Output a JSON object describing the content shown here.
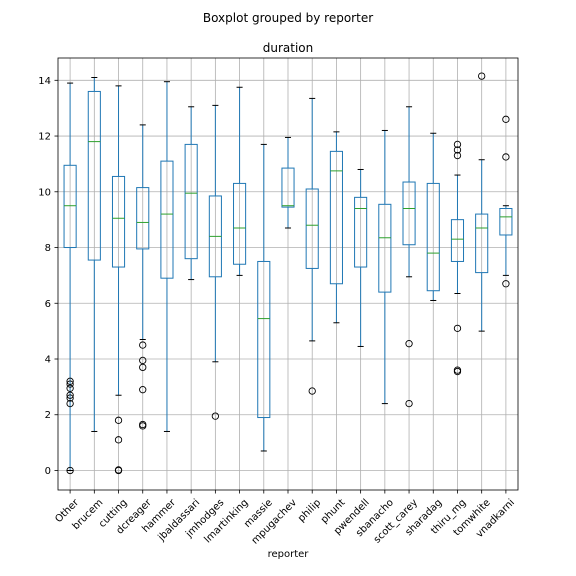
{
  "chart_data": {
    "type": "boxplot",
    "suptitle": "Boxplot grouped by reporter",
    "title": "duration",
    "xlabel": "reporter",
    "ylabel": "",
    "ylim": [
      -0.7,
      14.8
    ],
    "yticks": [
      0,
      2,
      4,
      6,
      8,
      10,
      12,
      14
    ],
    "grid": true,
    "colors": {
      "box": "#1f77b4",
      "median": "#2ca02c",
      "flier": "#000000",
      "grid": "#b0b0b0"
    },
    "categories": [
      "Other",
      "brucem",
      "cutting",
      "dcreager",
      "hammer",
      "jbaldassari",
      "jmhodges",
      "lmartinking",
      "massie",
      "mpugachev",
      "philip",
      "phunt",
      "pwendell",
      "sbanacho",
      "scott_carey",
      "sharadag",
      "thiru_mg",
      "tomwhite",
      "vnadkarni"
    ],
    "boxes": [
      {
        "name": "Other",
        "whislo": 0.0,
        "q1": 8.0,
        "med": 9.5,
        "q3": 10.95,
        "whishi": 13.9,
        "fliers": [
          3.2,
          3.1,
          2.95,
          2.7,
          2.6,
          2.4,
          0.0
        ]
      },
      {
        "name": "brucem",
        "whislo": 1.4,
        "q1": 7.55,
        "med": 11.8,
        "q3": 13.6,
        "whishi": 14.1,
        "fliers": []
      },
      {
        "name": "cutting",
        "whislo": 2.7,
        "q1": 7.3,
        "med": 9.05,
        "q3": 10.55,
        "whishi": 13.8,
        "fliers": [
          1.8,
          1.1,
          0.02,
          0.0
        ]
      },
      {
        "name": "dcreager",
        "whislo": 4.7,
        "q1": 7.95,
        "med": 8.9,
        "q3": 10.15,
        "whishi": 12.4,
        "fliers": [
          4.5,
          3.95,
          3.7,
          2.9,
          1.65,
          1.6
        ]
      },
      {
        "name": "hammer",
        "whislo": 1.4,
        "q1": 6.9,
        "med": 9.2,
        "q3": 11.1,
        "whishi": 13.95,
        "fliers": []
      },
      {
        "name": "jbaldassari",
        "whislo": 6.85,
        "q1": 7.6,
        "med": 9.95,
        "q3": 11.7,
        "whishi": 13.05,
        "fliers": []
      },
      {
        "name": "jmhodges",
        "whislo": 3.9,
        "q1": 6.95,
        "med": 8.4,
        "q3": 9.85,
        "whishi": 13.1,
        "fliers": [
          1.95
        ]
      },
      {
        "name": "lmartinking",
        "whislo": 7.0,
        "q1": 7.4,
        "med": 8.7,
        "q3": 10.3,
        "whishi": 13.75,
        "fliers": []
      },
      {
        "name": "massie",
        "whislo": 0.7,
        "q1": 1.9,
        "med": 5.45,
        "q3": 7.5,
        "whishi": 11.7,
        "fliers": []
      },
      {
        "name": "mpugachev",
        "whislo": 8.7,
        "q1": 9.45,
        "med": 9.5,
        "q3": 10.85,
        "whishi": 11.95,
        "fliers": []
      },
      {
        "name": "philip",
        "whislo": 4.65,
        "q1": 7.25,
        "med": 8.8,
        "q3": 10.1,
        "whishi": 13.35,
        "fliers": [
          2.85
        ]
      },
      {
        "name": "phunt",
        "whislo": 5.3,
        "q1": 6.7,
        "med": 10.75,
        "q3": 11.45,
        "whishi": 12.15,
        "fliers": []
      },
      {
        "name": "pwendell",
        "whislo": 4.45,
        "q1": 7.3,
        "med": 9.4,
        "q3": 9.8,
        "whishi": 10.8,
        "fliers": []
      },
      {
        "name": "sbanacho",
        "whislo": 2.4,
        "q1": 6.4,
        "med": 8.35,
        "q3": 9.55,
        "whishi": 12.2,
        "fliers": []
      },
      {
        "name": "scott_carey",
        "whislo": 6.95,
        "q1": 8.1,
        "med": 9.4,
        "q3": 10.35,
        "whishi": 13.05,
        "fliers": [
          4.55,
          2.4
        ]
      },
      {
        "name": "sharadag",
        "whislo": 6.1,
        "q1": 6.45,
        "med": 7.8,
        "q3": 10.3,
        "whishi": 12.1,
        "fliers": []
      },
      {
        "name": "thiru_mg",
        "whislo": 6.35,
        "q1": 7.5,
        "med": 8.3,
        "q3": 9.0,
        "whishi": 10.6,
        "fliers": [
          11.7,
          11.5,
          11.3,
          5.1,
          3.6,
          3.55
        ]
      },
      {
        "name": "tomwhite",
        "whislo": 5.0,
        "q1": 7.1,
        "med": 8.7,
        "q3": 9.2,
        "whishi": 11.15,
        "fliers": [
          14.15
        ]
      },
      {
        "name": "vnadkarni",
        "whislo": 7.0,
        "q1": 8.45,
        "med": 9.1,
        "q3": 9.4,
        "whishi": 9.5,
        "fliers": [
          12.6,
          11.25,
          6.7
        ]
      }
    ]
  }
}
